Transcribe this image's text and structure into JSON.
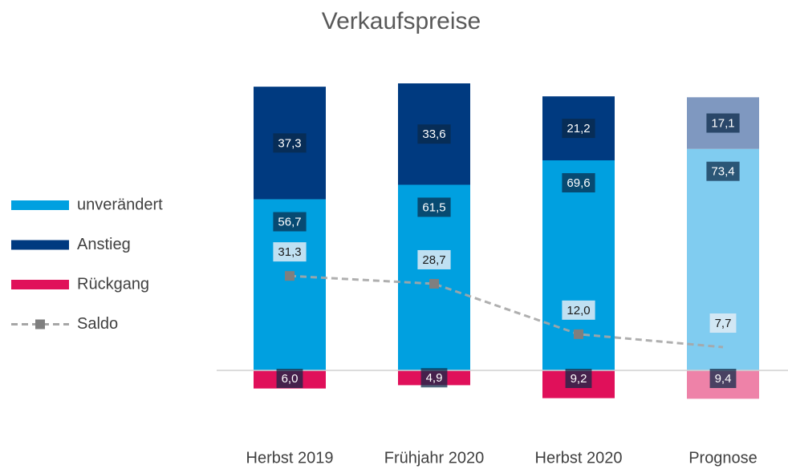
{
  "chart_data": {
    "type": "bar",
    "stacked": true,
    "title": "Verkaufspreise",
    "categories": [
      "Herbst 2019",
      "Frühjahr 2020",
      "Herbst 2020",
      "Prognose"
    ],
    "series": [
      {
        "name": "unverändert",
        "colors": [
          "#00a0e0",
          "#00a0e0",
          "#00a0e0",
          "#80ccf0"
        ],
        "values": [
          56.7,
          61.5,
          69.6,
          73.4
        ],
        "value_labels": [
          "56,7",
          "61,5",
          "69,6",
          "73,4"
        ]
      },
      {
        "name": "Anstieg",
        "colors": [
          "#003a80",
          "#003a80",
          "#003a80",
          "#7f98c0"
        ],
        "values": [
          37.3,
          33.6,
          21.2,
          17.1
        ],
        "value_labels": [
          "37,3",
          "33,6",
          "21,2",
          "17,1"
        ]
      },
      {
        "name": "Rückgang",
        "colors": [
          "#e0105a",
          "#e0105a",
          "#e0105a",
          "#ee82a8"
        ],
        "values": [
          -6.0,
          -4.9,
          -9.2,
          -9.4
        ],
        "value_labels": [
          "6,0",
          "4,9",
          "9,2",
          "9,4"
        ]
      },
      {
        "name": "Saldo",
        "type": "line",
        "color": "#a6a6a6",
        "values": [
          31.3,
          28.7,
          12.0,
          7.7
        ],
        "value_labels": [
          "31,3",
          "28,7",
          "12,0",
          "7,7"
        ]
      }
    ]
  }
}
